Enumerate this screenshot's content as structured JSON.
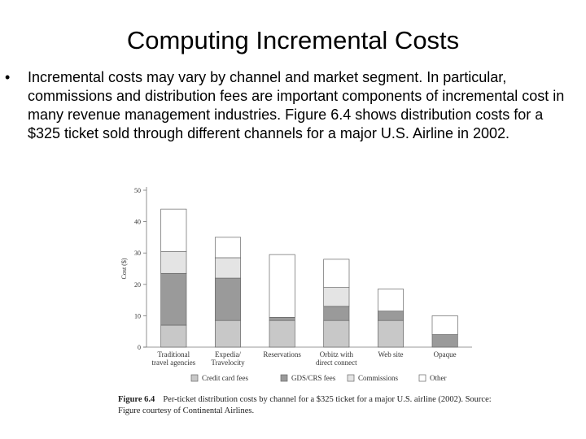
{
  "slide": {
    "title": "Computing Incremental Costs",
    "bullet_symbol": "•",
    "bullet_text": "Incremental costs may vary by channel and market segment. In particular, commissions and distribution fees are important components of incremental cost in many revenue management industries. Figure 6.4 shows distribution costs for a $325 ticket sold through different channels for a major U.S. Airline in 2002."
  },
  "caption": {
    "figure_number": "Figure 6.4",
    "text": "Per-ticket distribution costs by channel for a $325 ticket for a major U.S. airline (2002). Source: Figure courtesy of Continental Airlines."
  },
  "chart_data": {
    "type": "bar",
    "stacked": true,
    "ylabel": "Cost ($)",
    "ylim": [
      0,
      50
    ],
    "yticks": [
      0,
      10,
      20,
      30,
      40,
      50
    ],
    "categories": [
      [
        "Traditional",
        "travel agencies"
      ],
      [
        "Expedia/",
        "Travelocity"
      ],
      [
        "Reservations"
      ],
      [
        "Orbitz with",
        "direct connect"
      ],
      [
        "Web site"
      ],
      [
        "Opaque"
      ]
    ],
    "series": [
      {
        "name": "Credit card fees",
        "color": "#c8c8c8",
        "values": [
          7,
          8.5,
          8.5,
          8.5,
          8.5,
          0
        ]
      },
      {
        "name": "GDS/CRS fees",
        "color": "#9a9a9a",
        "values": [
          16.5,
          13.5,
          1,
          4.5,
          3,
          4
        ]
      },
      {
        "name": "Commissions",
        "color": "#e4e4e4",
        "values": [
          7,
          6.5,
          0,
          6,
          0,
          0
        ]
      },
      {
        "name": "Other",
        "color": "#ffffff",
        "values": [
          13.5,
          6.5,
          20,
          9,
          7,
          6
        ]
      }
    ],
    "legend_position": "bottom"
  }
}
